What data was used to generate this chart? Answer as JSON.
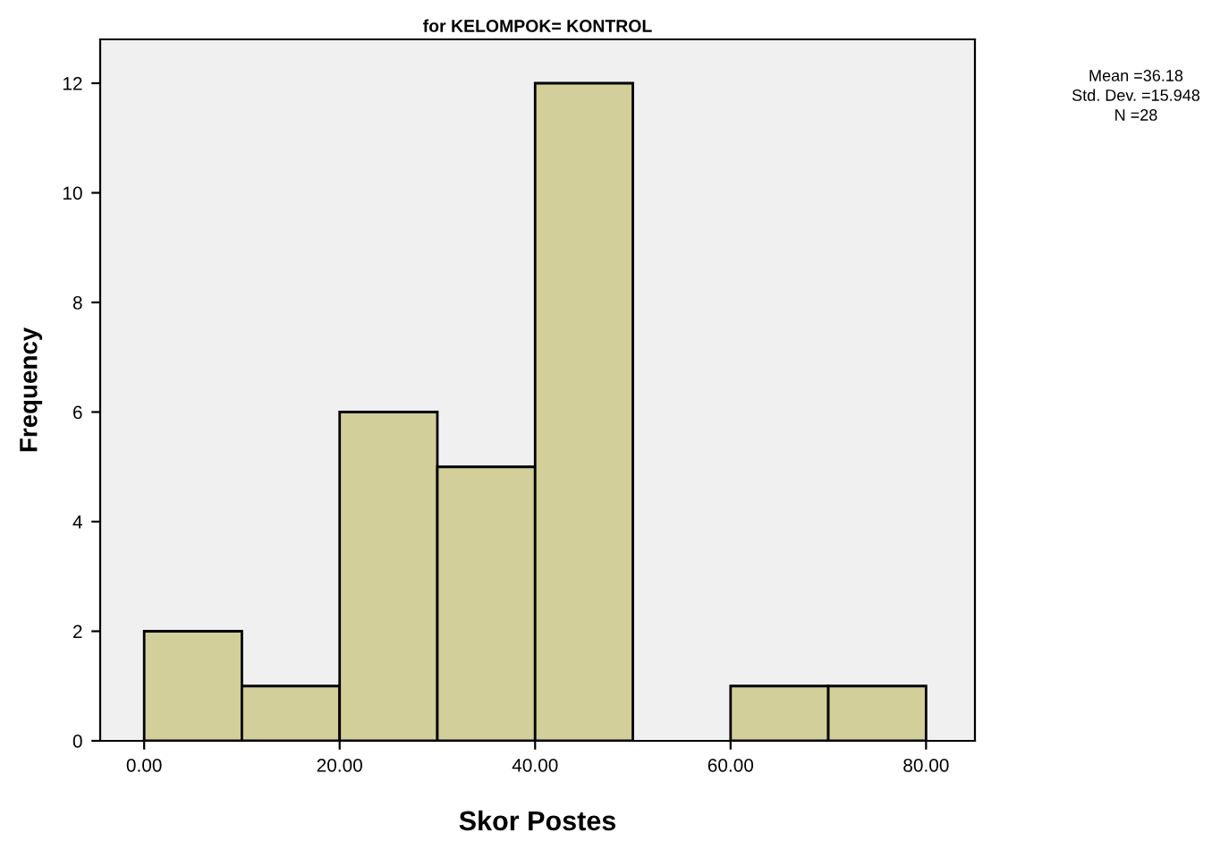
{
  "chart_data": {
    "type": "histogram",
    "title": "for KELOMPOK= KONTROL",
    "xlabel": "Skor Postes",
    "ylabel": "Frequency",
    "bins": [
      0,
      10,
      20,
      30,
      40,
      50,
      60,
      70,
      80
    ],
    "values": [
      2,
      1,
      6,
      5,
      12,
      0,
      1,
      1
    ],
    "color": "#d3cf9a",
    "xlim": [
      -4.5,
      85
    ],
    "ylim": [
      0,
      12.8
    ],
    "xticks": [
      {
        "value": 0,
        "label": "0.00"
      },
      {
        "value": 20,
        "label": "20.00"
      },
      {
        "value": 40,
        "label": "40.00"
      },
      {
        "value": 60,
        "label": "60.00"
      },
      {
        "value": 80,
        "label": "80.00"
      }
    ],
    "yticks": [
      0,
      2,
      4,
      6,
      8,
      10,
      12
    ],
    "grid": false,
    "annotations": [
      "Mean =36.18",
      "Std. Dev. =15.948",
      "N =28"
    ]
  }
}
